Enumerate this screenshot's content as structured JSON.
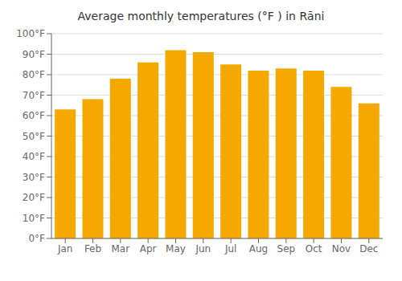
{
  "chart_data": {
    "type": "bar",
    "title": "Average monthly temperatures (°F ) in Rāni",
    "categories": [
      "Jan",
      "Feb",
      "Mar",
      "Apr",
      "May",
      "Jun",
      "Jul",
      "Aug",
      "Sep",
      "Oct",
      "Nov",
      "Dec"
    ],
    "values": [
      63,
      68,
      78,
      86,
      92,
      91,
      85,
      82,
      83,
      82,
      74,
      66
    ],
    "color": "#F5A800",
    "ylim": [
      0,
      100
    ],
    "yticks": [
      {
        "value": 0,
        "label": "0°F"
      },
      {
        "value": 10,
        "label": "10°F"
      },
      {
        "value": 20,
        "label": "20°F"
      },
      {
        "value": 30,
        "label": "30°F"
      },
      {
        "value": 40,
        "label": "40°F"
      },
      {
        "value": 50,
        "label": "50°F"
      },
      {
        "value": 60,
        "label": "60°F"
      },
      {
        "value": 70,
        "label": "70°F"
      },
      {
        "value": 80,
        "label": "80°F"
      },
      {
        "value": 90,
        "label": "90°F"
      },
      {
        "value": 100,
        "label": "100°F"
      }
    ],
    "grid": true
  }
}
